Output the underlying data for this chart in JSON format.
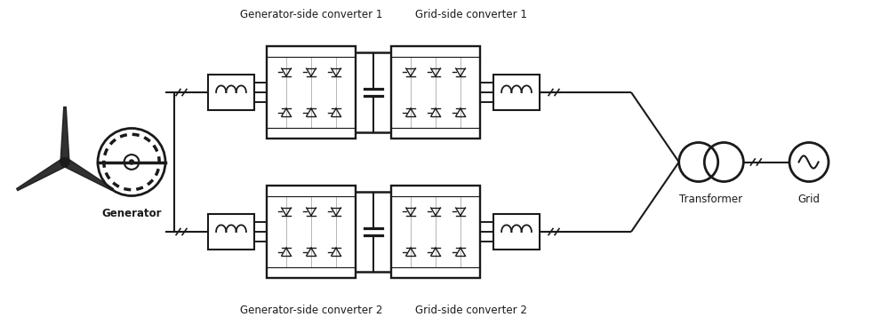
{
  "bg_color": "#ffffff",
  "line_color": "#1a1a1a",
  "text_color": "#1a1a1a",
  "labels": {
    "generator": "Generator",
    "gen_conv1": "Generator-side converter 1",
    "gen_conv2": "Generator-side converter 2",
    "grid_conv1": "Grid-side converter 1",
    "grid_conv2": "Grid-side converter 2",
    "transformer": "Transformer",
    "grid": "Grid"
  },
  "font_size_label": 8.5,
  "figsize": [
    10.0,
    3.66
  ],
  "dpi": 100
}
